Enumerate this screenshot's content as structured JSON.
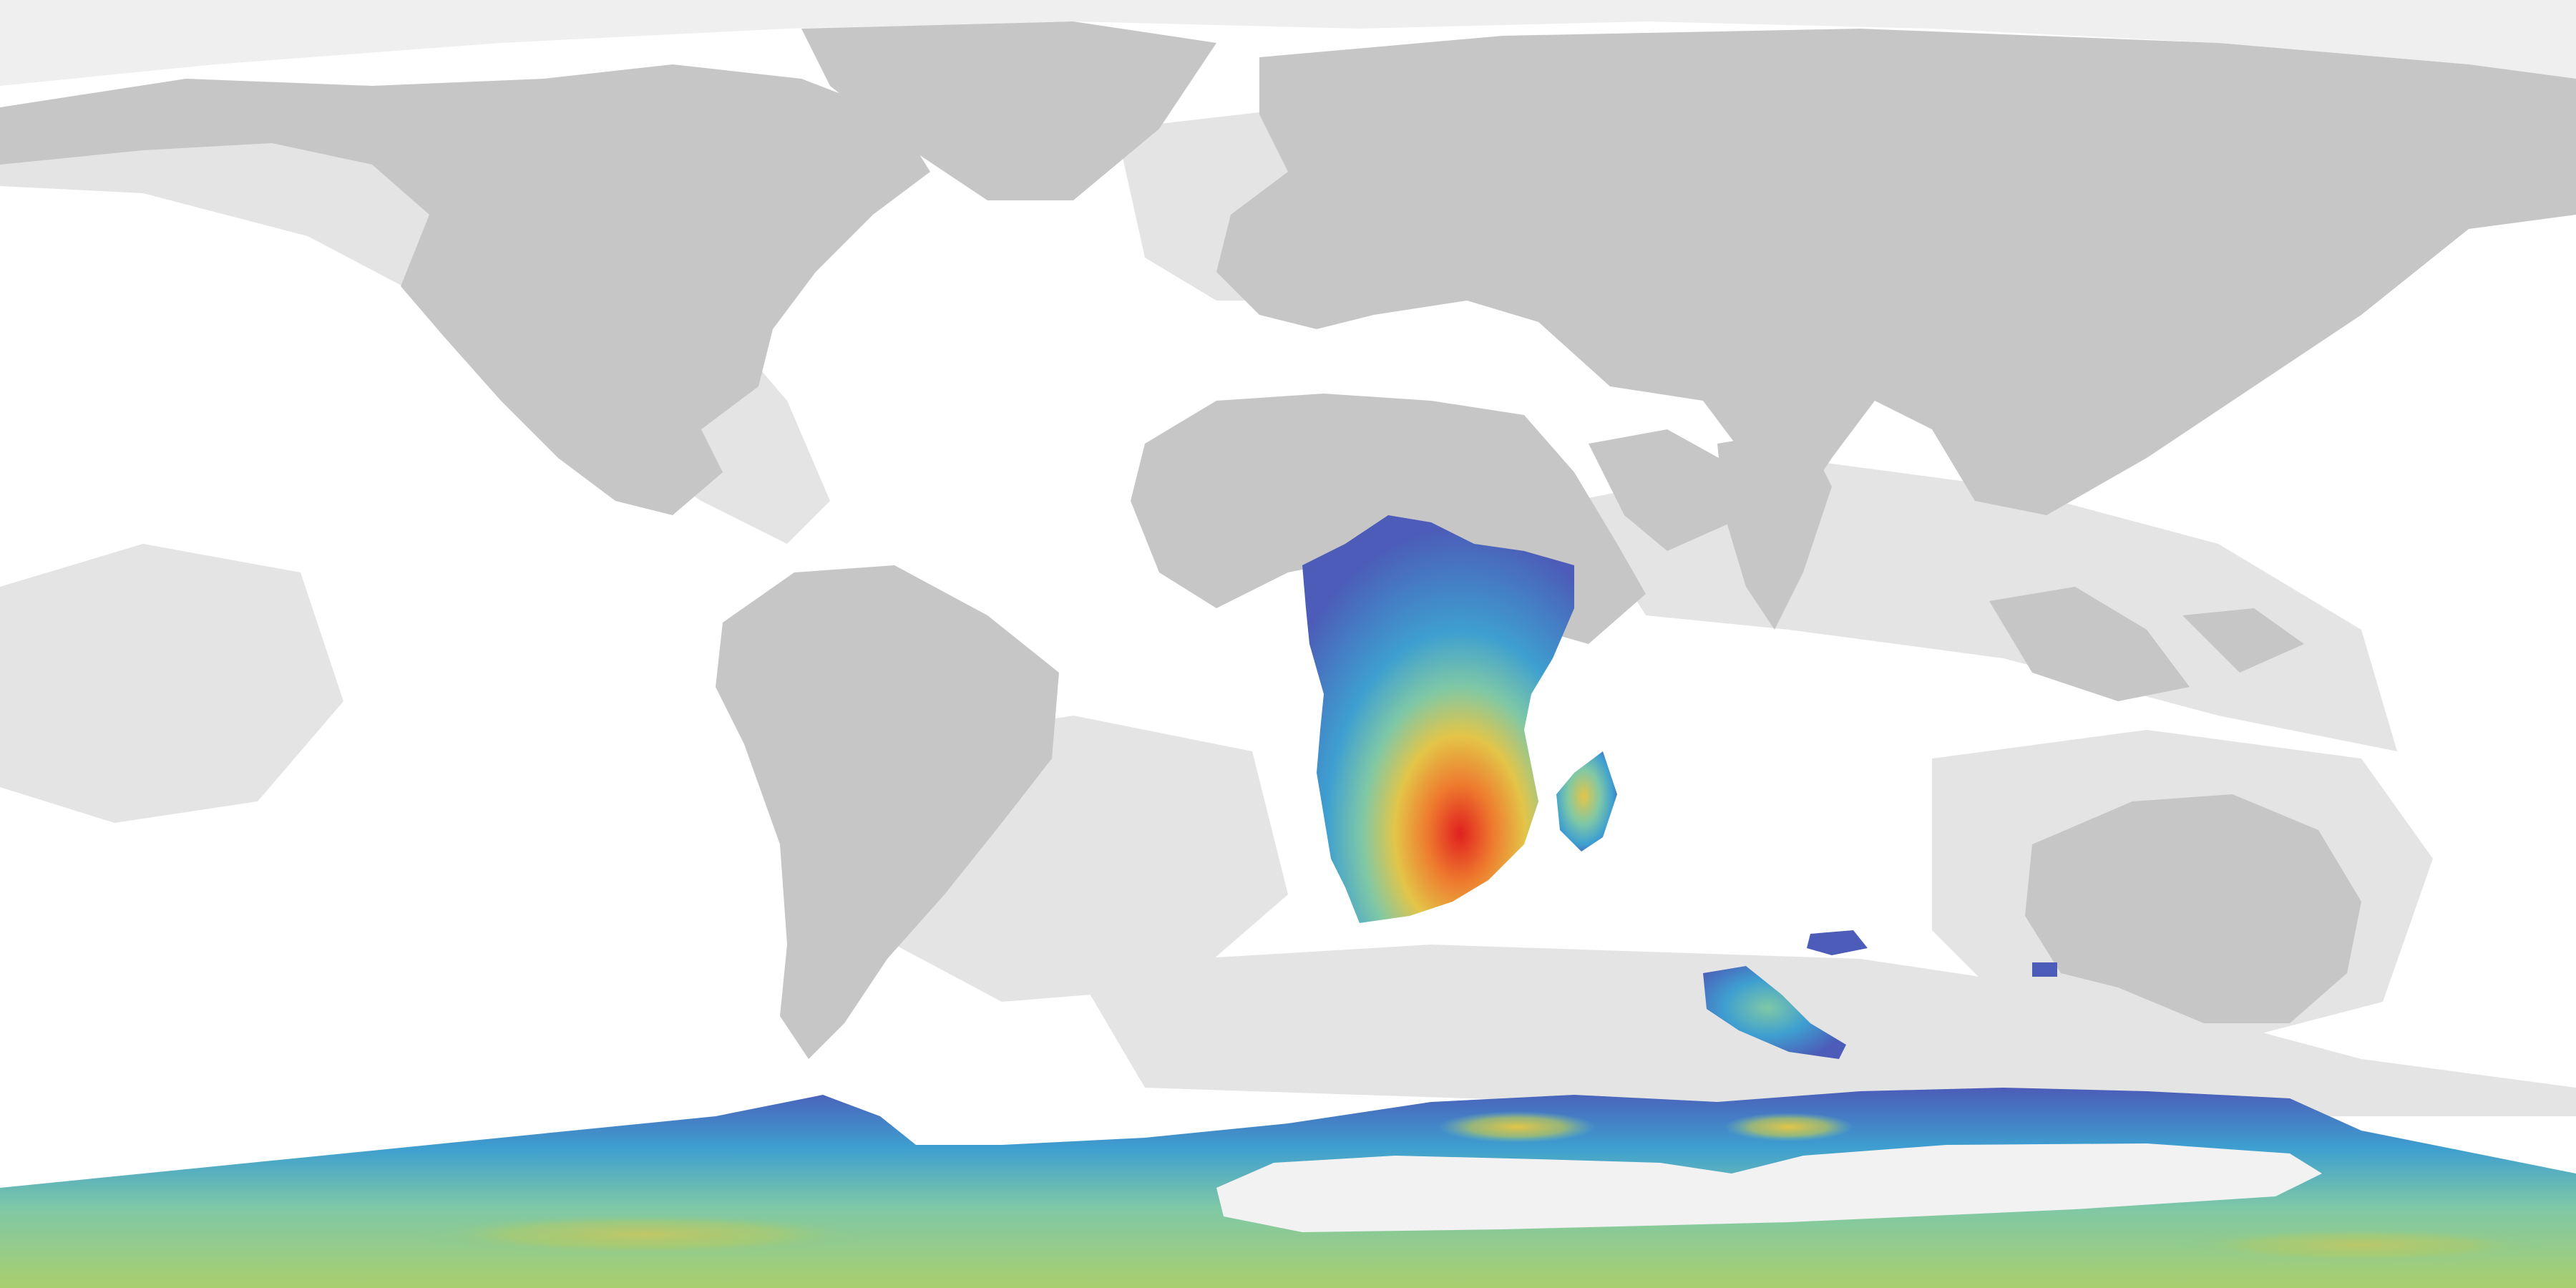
{
  "map": {
    "projection": "equirectangular",
    "extent": {
      "lon": [
        -180,
        180
      ],
      "lat": [
        -90,
        90
      ]
    },
    "style": "raster",
    "colors": {
      "ocean": "#ffffff",
      "land": "#c6c6c6",
      "coastal_shelf": "#e4e4e4",
      "sea_ice": "#f2f2f3",
      "heat_low": "#4c5cb8",
      "heat_midlow": "#3e9fd0",
      "heat_mid": "#7fc8a6",
      "heat_midhigh": "#e3c548",
      "heat_high": "#ee7a2e",
      "heat_peak": "#e0201f"
    },
    "layers": [
      "ocean",
      "coastal-shelf",
      "land",
      "sea-ice",
      "density-overlay"
    ],
    "overlay": {
      "type": "heatmap",
      "hotspots": [
        {
          "name": "southern-africa",
          "level": "peak"
        },
        {
          "name": "madagascar",
          "level": "medium"
        },
        {
          "name": "southern-ocean-islands",
          "level": "low-medium"
        },
        {
          "name": "southern-ocean-band",
          "level": "low-medium"
        }
      ]
    }
  }
}
